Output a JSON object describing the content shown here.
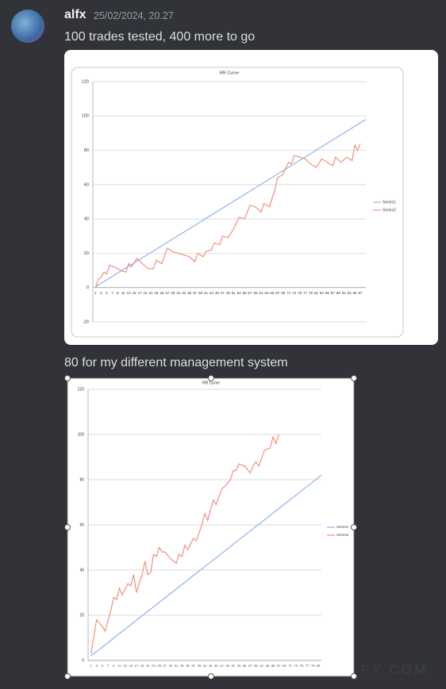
{
  "message": {
    "username": "alfx",
    "timestamp": "25/02/2024, 20.27",
    "lines": [
      "100 trades tested, 400 more to go",
      "80 for my different management system"
    ]
  },
  "watermark": "FX.COM",
  "chart_data": [
    {
      "type": "line",
      "title": "RR Curve",
      "xlim": [
        0,
        99
      ],
      "ylim": [
        -20,
        120
      ],
      "yticks": [
        -20,
        0,
        20,
        40,
        60,
        80,
        100,
        120
      ],
      "grid": true,
      "legend": "right",
      "xticks": [
        1,
        3,
        5,
        7,
        9,
        11,
        13,
        15,
        17,
        19,
        21,
        23,
        25,
        27,
        29,
        31,
        33,
        35,
        37,
        39,
        41,
        43,
        45,
        47,
        49,
        51,
        53,
        55,
        57,
        59,
        61,
        63,
        65,
        67,
        69,
        71,
        73,
        75,
        77,
        79,
        81,
        83,
        85,
        87,
        89,
        91,
        93,
        95,
        97
      ],
      "series": [
        {
          "name": "Series1",
          "color": "#8db3e8",
          "x": [
            1,
            99
          ],
          "values": [
            0.5,
            98
          ]
        },
        {
          "name": "Series2",
          "color": "#f0907e",
          "x": [
            1,
            2,
            3,
            4,
            5,
            6,
            8,
            10,
            12,
            13,
            14,
            16,
            18,
            20,
            22,
            23,
            25,
            27,
            29,
            31,
            33,
            35,
            37,
            38,
            40,
            41,
            43,
            44,
            46,
            47,
            49,
            51,
            53,
            55,
            57,
            59,
            61,
            62,
            64,
            66,
            67,
            69,
            70,
            71,
            72,
            73,
            75,
            77,
            79,
            81,
            83,
            85,
            87,
            88,
            90,
            92,
            94,
            95,
            96,
            97
          ],
          "values": [
            0,
            5,
            6,
            9,
            8,
            13,
            12,
            10,
            9,
            14,
            12,
            17,
            14,
            11,
            11,
            16,
            14,
            23,
            21,
            20,
            19,
            18,
            15,
            20,
            18,
            21,
            22,
            26,
            25,
            30,
            29,
            34,
            41,
            40,
            48,
            47,
            44,
            49,
            47,
            57,
            64,
            66,
            70,
            73,
            72,
            77,
            76,
            75,
            72,
            70,
            75,
            73,
            71,
            76,
            73,
            76,
            74,
            83,
            80,
            84
          ]
        }
      ]
    },
    {
      "type": "line",
      "title": "RR Curve",
      "xlim": [
        0,
        82
      ],
      "ylim": [
        0,
        120
      ],
      "yticks": [
        0,
        20,
        40,
        60,
        80,
        100,
        120
      ],
      "grid": true,
      "legend": "right",
      "xticks": [
        1,
        3,
        5,
        7,
        9,
        11,
        13,
        15,
        17,
        19,
        21,
        23,
        25,
        27,
        29,
        31,
        33,
        35,
        37,
        39,
        41,
        43,
        45,
        47,
        49,
        51,
        53,
        55,
        57,
        59,
        61,
        63,
        65,
        67,
        69,
        71,
        73,
        75,
        77,
        79,
        81
      ],
      "series": [
        {
          "name": "Series1",
          "color": "#8db3e8",
          "x": [
            1,
            82
          ],
          "values": [
            2,
            82
          ]
        },
        {
          "name": "Series2",
          "color": "#f0907e",
          "x": [
            1,
            3,
            5,
            6,
            8,
            9,
            10,
            11,
            12,
            14,
            15,
            16,
            17,
            19,
            20,
            21,
            22,
            23,
            24,
            25,
            26,
            27,
            29,
            30,
            31,
            32,
            33,
            34,
            35,
            37,
            38,
            40,
            41,
            42,
            44,
            45,
            47,
            48,
            50,
            51,
            52,
            53,
            55,
            57,
            58,
            59,
            60,
            62,
            64,
            65,
            66,
            67
          ],
          "values": [
            3,
            18,
            15,
            13,
            22,
            28,
            27,
            32,
            29,
            34,
            33,
            38,
            30,
            38,
            44,
            38,
            39,
            47,
            46,
            50,
            48,
            48,
            45,
            44,
            43,
            47,
            46,
            51,
            49,
            54,
            53,
            60,
            65,
            62,
            71,
            69,
            76,
            77,
            80,
            84,
            84,
            87,
            86,
            83,
            86,
            88,
            86,
            93,
            94,
            99,
            96,
            100
          ]
        }
      ]
    }
  ]
}
